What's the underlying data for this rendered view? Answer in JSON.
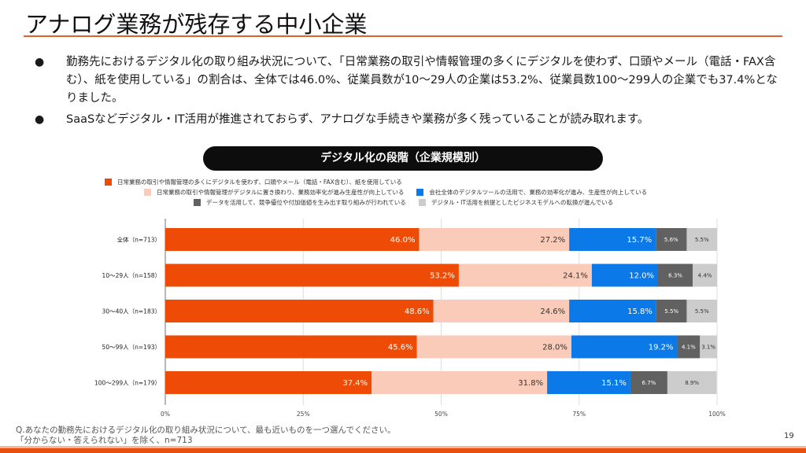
{
  "header": {
    "title": "アナログ業務が残存する中小企業"
  },
  "bullets": [
    "勤務先におけるデジタル化の取り組み状況について、「日常業務の取引や情報管理の多くにデジタルを使わず、口頭やメール（電話・FAX含む）、紙を使用している」の割合は、全体では46.0%、従業員数が10〜29人の企業は53.2%、従業員数100〜299人の企業でも37.4%となりました。",
    "SaaSなどデジタル・IT活用が推進されておらず、アナログな手続きや業務が多く残っていることが読み取れます。"
  ],
  "bullet_symbol": "●",
  "chart_pill": "デジタル化の段階（企業規模別）",
  "chart_data": {
    "type": "bar",
    "orientation": "horizontal",
    "stacked": true,
    "title": "デジタル化の段階（企業規模別）",
    "categories": [
      "全体（n=713）",
      "10〜29人（n=158）",
      "30〜40人（n=183）",
      "50〜99人（n=193）",
      "100〜299人（n=179）"
    ],
    "series": [
      {
        "name": "日常業務の取引や情報管理の多くにデジタルを使わず、口頭やメール（電話・FAX含む）、紙を使用している",
        "color": "#ee4c06",
        "label_color": "#ffffff",
        "values": [
          46.0,
          53.2,
          48.6,
          45.6,
          37.4
        ]
      },
      {
        "name": "日常業務の取引や情報管理がデジタルに置き換わり、業務効率化が進み生産性が向上している",
        "color": "#fbcbb9",
        "label_color": "#333333",
        "values": [
          27.2,
          24.1,
          24.6,
          28.0,
          31.8
        ]
      },
      {
        "name": "会社全体のデジタルツールの活用で、業務の効率化が進み、生産性が向上している",
        "color": "#0b7ae8",
        "label_color": "#ffffff",
        "values": [
          15.7,
          12.0,
          15.8,
          19.2,
          15.1
        ]
      },
      {
        "name": "データを活用して、競争優位や付加価値を生み出す取り組みが行われている",
        "color": "#616161",
        "label_color": "#ffffff",
        "values": [
          5.6,
          6.3,
          5.5,
          4.1,
          6.7
        ]
      },
      {
        "name": "デジタル・IT活用を前提としたビジネスモデルへの転換が進んでいる",
        "color": "#cccccc",
        "label_color": "#333333",
        "values": [
          5.5,
          4.4,
          5.5,
          3.1,
          8.9
        ]
      }
    ],
    "value_format": "{v}%",
    "xlim": [
      0,
      100
    ],
    "xticks": [
      0,
      25,
      50,
      75,
      100
    ],
    "xtick_labels": [
      "0%",
      "25%",
      "50%",
      "75%",
      "100%"
    ],
    "grid": true,
    "legend_position": "top"
  },
  "footnote": {
    "line1": "Q.あなたの勤務先におけるデジタル化の取り組み状況について、最も近いものを一つ選んでください。",
    "line2": "「分からない・答えられない」を除く、n=713"
  },
  "page_number": "19"
}
